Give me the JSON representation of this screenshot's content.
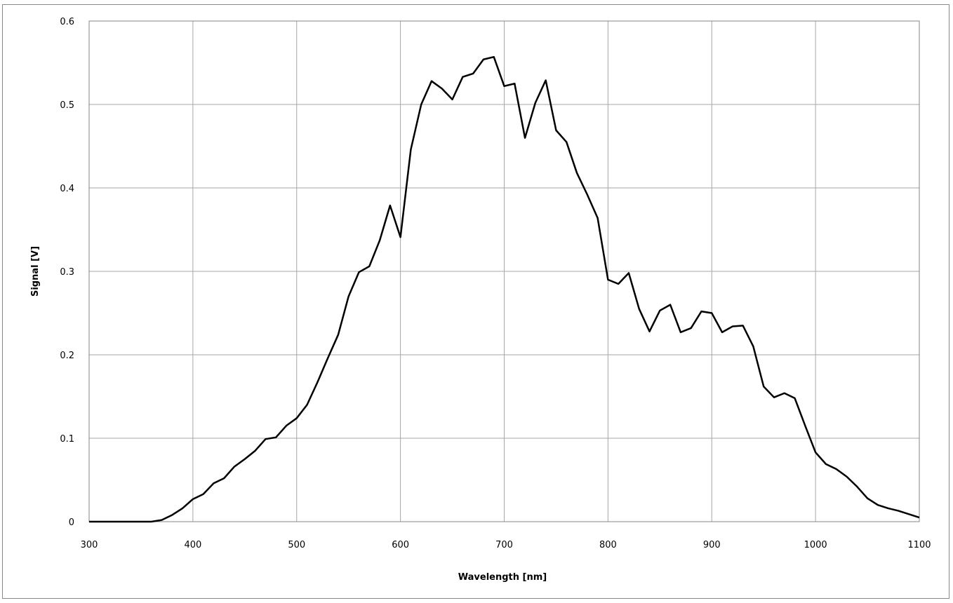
{
  "chart_data": {
    "type": "line",
    "title": "",
    "xlabel": "Wavelength [nm]",
    "ylabel": "Signal [V]",
    "xlim": [
      300,
      1100
    ],
    "ylim": [
      0,
      0.6
    ],
    "xticks": [
      300,
      400,
      500,
      600,
      700,
      800,
      900,
      1000,
      1100
    ],
    "xtick_labels": [
      "300",
      "400",
      "500",
      "600",
      "700",
      "800",
      "900",
      "1000",
      "1100"
    ],
    "yticks": [
      0,
      0.1,
      0.2,
      0.3,
      0.4,
      0.5,
      0.6
    ],
    "ytick_labels": [
      "0",
      "0.1",
      "0.2",
      "0.3",
      "0.4",
      "0.5",
      "0.6"
    ],
    "grid": true,
    "legend": false,
    "line_color": "#000000",
    "grid_color": "#a6a6a6",
    "series": [
      {
        "x": [
          300,
          310,
          320,
          330,
          340,
          350,
          360,
          370,
          380,
          390,
          400,
          410,
          420,
          430,
          440,
          450,
          460,
          470,
          480,
          490,
          500,
          510,
          520,
          530,
          540,
          550,
          560,
          570,
          580,
          590,
          600,
          610,
          620,
          630,
          640,
          650,
          660,
          670,
          680,
          690,
          700,
          710,
          720,
          730,
          740,
          750,
          760,
          770,
          780,
          790,
          800,
          810,
          820,
          830,
          840,
          850,
          860,
          870,
          880,
          890,
          900,
          910,
          920,
          930,
          940,
          950,
          960,
          970,
          980,
          990,
          1000,
          1010,
          1020,
          1030,
          1040,
          1050,
          1060,
          1070,
          1080,
          1090,
          1100
        ],
        "values": [
          0,
          0,
          0,
          0,
          0,
          0,
          0,
          0.002,
          0.008,
          0.016,
          0.027,
          0.033,
          0.046,
          0.052,
          0.066,
          0.075,
          0.085,
          0.099,
          0.101,
          0.115,
          0.124,
          0.14,
          0.167,
          0.196,
          0.224,
          0.27,
          0.299,
          0.306,
          0.337,
          0.379,
          0.341,
          0.446,
          0.5,
          0.528,
          0.519,
          0.506,
          0.533,
          0.537,
          0.554,
          0.557,
          0.522,
          0.525,
          0.46,
          0.502,
          0.529,
          0.469,
          0.455,
          0.418,
          0.392,
          0.364,
          0.29,
          0.285,
          0.298,
          0.255,
          0.228,
          0.253,
          0.26,
          0.227,
          0.232,
          0.252,
          0.25,
          0.227,
          0.234,
          0.235,
          0.21,
          0.162,
          0.149,
          0.154,
          0.148,
          0.115,
          0.083,
          0.069,
          0.063,
          0.054,
          0.042,
          0.028,
          0.02,
          0.016,
          0.013,
          0.009,
          0.005
        ]
      }
    ]
  }
}
